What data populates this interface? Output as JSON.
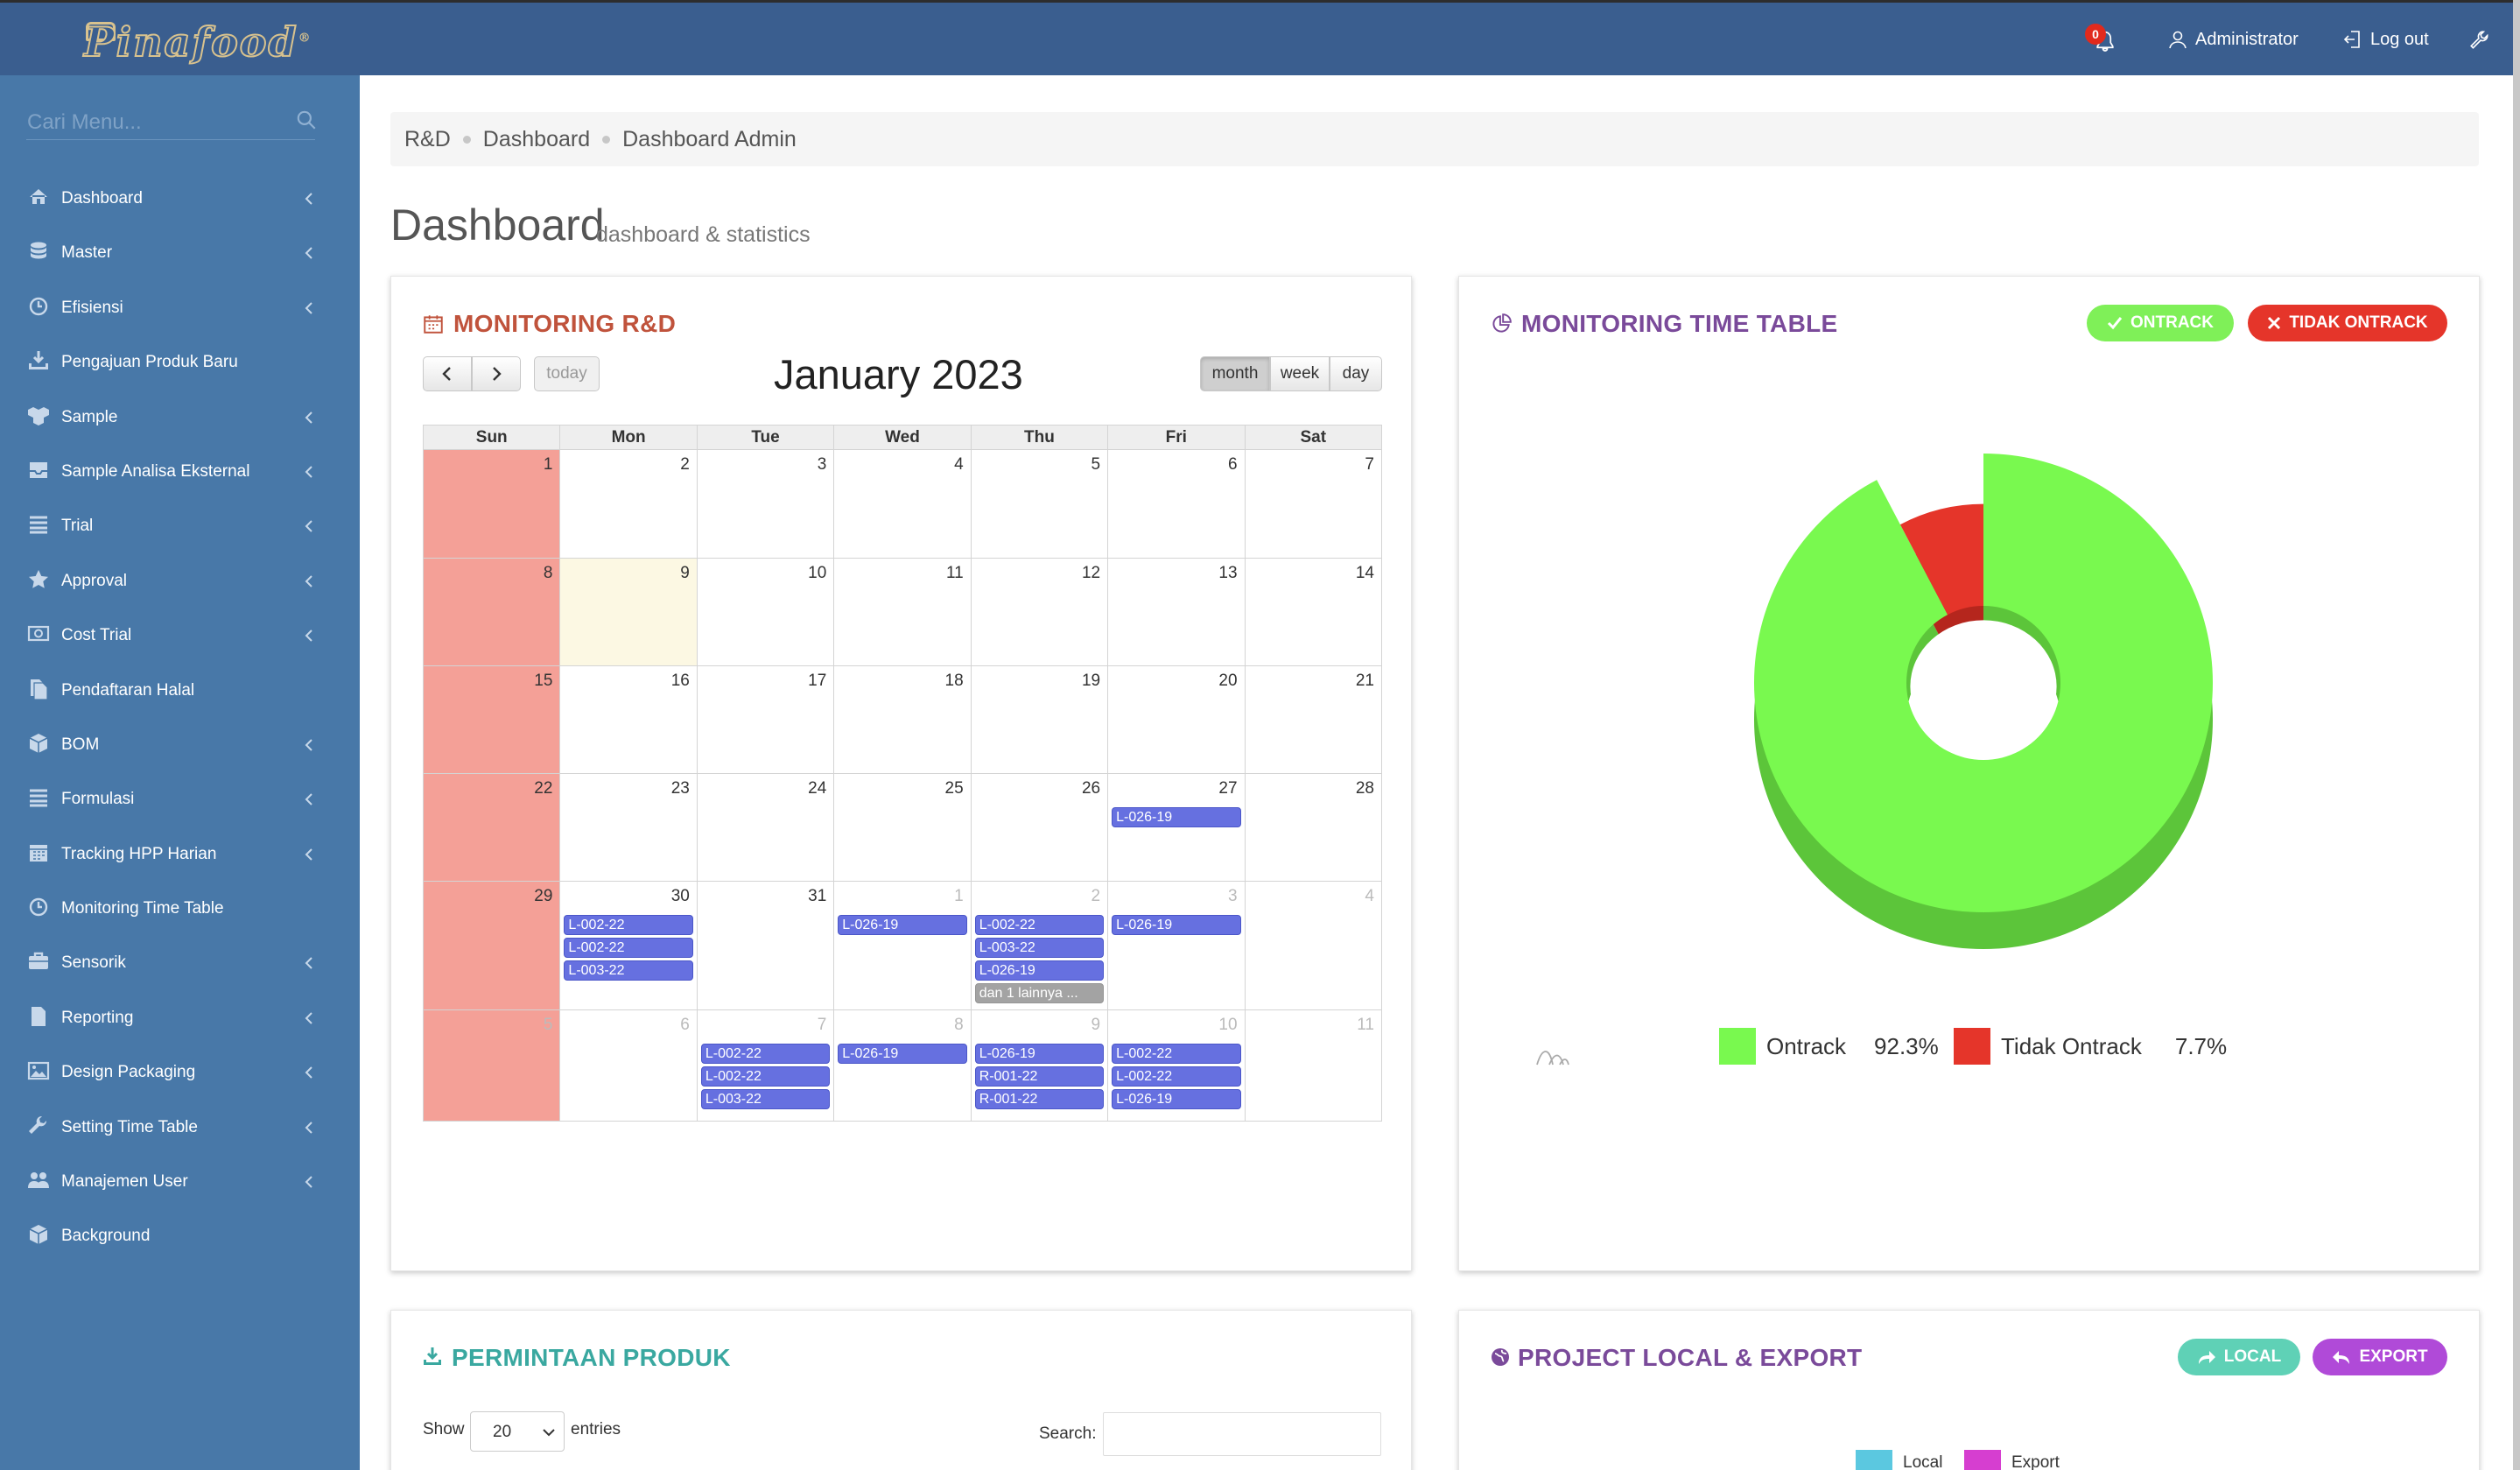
{
  "brand": {
    "logo_text": "Pinafood"
  },
  "topbar": {
    "notification_count": "0",
    "user_label": "Administrator",
    "logout_label": "Log out",
    "color": "#3a5e8f"
  },
  "sidebar": {
    "search_placeholder": "Cari Menu...",
    "items": [
      {
        "label": "Dashboard",
        "icon": "home-icon",
        "expandable": true
      },
      {
        "label": "Master",
        "icon": "database-icon",
        "expandable": true
      },
      {
        "label": "Efisiensi",
        "icon": "clock-icon",
        "expandable": true
      },
      {
        "label": "Pengajuan Produk Baru",
        "icon": "download-icon",
        "expandable": false
      },
      {
        "label": "Sample",
        "icon": "cubes-icon",
        "expandable": true
      },
      {
        "label": "Sample Analisa Eksternal",
        "icon": "inbox-icon",
        "expandable": true
      },
      {
        "label": "Trial",
        "icon": "list-icon",
        "expandable": true
      },
      {
        "label": "Approval",
        "icon": "star-icon",
        "expandable": true
      },
      {
        "label": "Cost Trial",
        "icon": "money-icon",
        "expandable": true
      },
      {
        "label": "Pendaftaran Halal",
        "icon": "files-icon",
        "expandable": false
      },
      {
        "label": "BOM",
        "icon": "cube-icon",
        "expandable": true
      },
      {
        "label": "Formulasi",
        "icon": "list-icon",
        "expandable": true
      },
      {
        "label": "Tracking HPP Harian",
        "icon": "calendar-icon",
        "expandable": true
      },
      {
        "label": "Monitoring Time Table",
        "icon": "clock-icon",
        "expandable": false
      },
      {
        "label": "Sensorik",
        "icon": "briefcase-icon",
        "expandable": true
      },
      {
        "label": "Reporting",
        "icon": "file-icon",
        "expandable": true
      },
      {
        "label": "Design Packaging",
        "icon": "picture-icon",
        "expandable": true
      },
      {
        "label": "Setting Time Table",
        "icon": "wrench-icon",
        "expandable": true
      },
      {
        "label": "Manajemen User",
        "icon": "users-icon",
        "expandable": true
      },
      {
        "label": "Background",
        "icon": "cube-icon",
        "expandable": false
      }
    ]
  },
  "breadcrumb": [
    "R&D",
    "Dashboard",
    "Dashboard Admin"
  ],
  "page": {
    "title": "Dashboard",
    "subtitle": "dashboard & statistics"
  },
  "monitoring_rd": {
    "title": "MONITORING R&D",
    "title_color": "#c0533c",
    "today_label": "today",
    "month_label": "month",
    "week_label": "week",
    "day_label": "day",
    "calendar_title": "January 2023",
    "weekdays": [
      "Sun",
      "Mon",
      "Tue",
      "Wed",
      "Thu",
      "Fri",
      "Sat"
    ],
    "weeks": [
      [
        {
          "d": "1"
        },
        {
          "d": "2"
        },
        {
          "d": "3"
        },
        {
          "d": "4"
        },
        {
          "d": "5"
        },
        {
          "d": "6"
        },
        {
          "d": "7"
        }
      ],
      [
        {
          "d": "8"
        },
        {
          "d": "9",
          "today": true
        },
        {
          "d": "10"
        },
        {
          "d": "11"
        },
        {
          "d": "12"
        },
        {
          "d": "13"
        },
        {
          "d": "14"
        }
      ],
      [
        {
          "d": "15"
        },
        {
          "d": "16"
        },
        {
          "d": "17"
        },
        {
          "d": "18"
        },
        {
          "d": "19"
        },
        {
          "d": "20"
        },
        {
          "d": "21"
        }
      ],
      [
        {
          "d": "22"
        },
        {
          "d": "23"
        },
        {
          "d": "24"
        },
        {
          "d": "25"
        },
        {
          "d": "26"
        },
        {
          "d": "27",
          "events": [
            "L-026-19"
          ]
        },
        {
          "d": "28"
        }
      ],
      [
        {
          "d": "29"
        },
        {
          "d": "30",
          "events": [
            "L-002-22",
            "L-002-22",
            "L-003-22"
          ]
        },
        {
          "d": "31"
        },
        {
          "d": "1",
          "other": true,
          "events": [
            "L-026-19"
          ]
        },
        {
          "d": "2",
          "other": true,
          "events": [
            "L-002-22",
            "L-003-22",
            "L-026-19"
          ],
          "more": "dan 1 lainnya ..."
        },
        {
          "d": "3",
          "other": true,
          "events": [
            "L-026-19"
          ]
        },
        {
          "d": "4",
          "other": true
        }
      ],
      [
        {
          "d": "5",
          "other": true
        },
        {
          "d": "6",
          "other": true
        },
        {
          "d": "7",
          "other": true,
          "events": [
            "L-002-22",
            "L-002-22",
            "L-003-22"
          ]
        },
        {
          "d": "8",
          "other": true,
          "events": [
            "L-026-19"
          ]
        },
        {
          "d": "9",
          "other": true,
          "events": [
            "L-026-19",
            "R-001-22",
            "R-001-22"
          ]
        },
        {
          "d": "10",
          "other": true,
          "events": [
            "L-002-22",
            "L-002-22",
            "L-026-19"
          ]
        },
        {
          "d": "11",
          "other": true
        }
      ]
    ]
  },
  "monitoring_time_table": {
    "title": "MONITORING TIME TABLE",
    "title_color": "#7a4a9a",
    "ontrack_button": "ONTRACK",
    "tidak_ontrack_button": "TIDAK ONTRACK"
  },
  "chart_data": {
    "type": "pie",
    "style": "3d donut",
    "categories": [
      "Ontrack",
      "Tidak Ontrack"
    ],
    "values": [
      92.3,
      7.7
    ],
    "value_labels": [
      "92.3%",
      "7.7%"
    ],
    "colors": [
      "#79f94f",
      "#e5352a"
    ],
    "legend_position": "bottom"
  },
  "permintaan_produk": {
    "title": "PERMINTAAN PRODUK",
    "title_color": "#3aa8a0",
    "show_label": "Show",
    "entries_value": "20",
    "entries_label": "entries",
    "search_label": "Search:"
  },
  "project_local_export": {
    "title": "PROJECT LOCAL & EXPORT",
    "title_color": "#7a4a9a",
    "local_button": "LOCAL",
    "export_button": "EXPORT",
    "legend": [
      {
        "name": "Local",
        "color": "#5bc8e0"
      },
      {
        "name": "Export",
        "color": "#d63ed0"
      }
    ]
  }
}
